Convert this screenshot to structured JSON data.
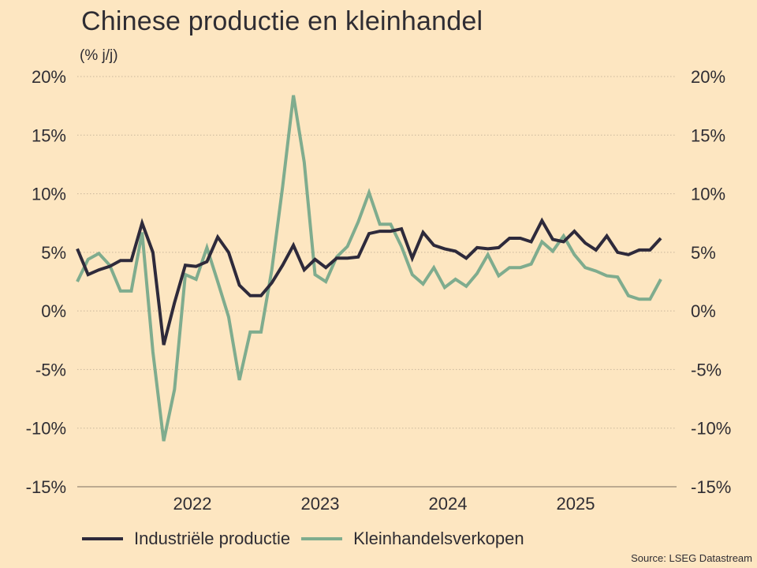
{
  "chart_data": {
    "type": "line",
    "title": "Chinese productie en kleinhandel",
    "subtitle": "(% j/j)",
    "xlabel": "",
    "ylabel": "",
    "ylim": [
      -15,
      20
    ],
    "yticks": [
      20,
      15,
      10,
      5,
      0,
      -5,
      -10,
      -15
    ],
    "ytick_labels": [
      "20%",
      "15%",
      "10%",
      "5%",
      "0%",
      "-5%",
      "-10%",
      "-15%"
    ],
    "xtick_labels": [
      "2022",
      "2023",
      "2024",
      "2025"
    ],
    "grid": true,
    "legend_position": "bottom",
    "series": [
      {
        "name": "Industriële productie",
        "color": "#2e2a3b",
        "values": [
          5.3,
          3.1,
          3.5,
          3.8,
          4.3,
          4.3,
          7.5,
          5.0,
          -2.9,
          0.7,
          3.9,
          3.8,
          4.2,
          6.3,
          5.0,
          2.2,
          1.3,
          1.3,
          2.4,
          3.9,
          5.6,
          3.5,
          4.4,
          3.7,
          4.5,
          4.5,
          4.6,
          6.6,
          6.8,
          6.8,
          7.0,
          4.5,
          6.7,
          5.6,
          5.3,
          5.1,
          4.5,
          5.4,
          5.3,
          5.4,
          6.2,
          6.2,
          5.9,
          7.7,
          6.1,
          5.9,
          6.8,
          5.8,
          5.2,
          6.4,
          5.0,
          4.8,
          5.2,
          5.2,
          6.2
        ]
      },
      {
        "name": "Kleinhandelsverkopen",
        "color": "#7fac8e",
        "values": [
          2.5,
          4.4,
          4.9,
          3.9,
          1.7,
          1.7,
          6.7,
          -3.5,
          -11.1,
          -6.7,
          3.1,
          2.7,
          5.4,
          2.5,
          -0.5,
          -5.9,
          -1.8,
          -1.8,
          3.5,
          10.6,
          18.4,
          12.7,
          3.1,
          2.5,
          4.6,
          5.5,
          7.6,
          10.1,
          7.4,
          7.4,
          5.5,
          3.1,
          2.3,
          3.7,
          2.0,
          2.7,
          2.1,
          3.2,
          4.8,
          3.0,
          3.7,
          3.7,
          4.0,
          5.9,
          5.1,
          6.4,
          4.8,
          3.7,
          3.4,
          3.0,
          2.9,
          1.3,
          1.0,
          1.0,
          2.7
        ]
      }
    ],
    "source": "Source: LSEG Datastream"
  }
}
